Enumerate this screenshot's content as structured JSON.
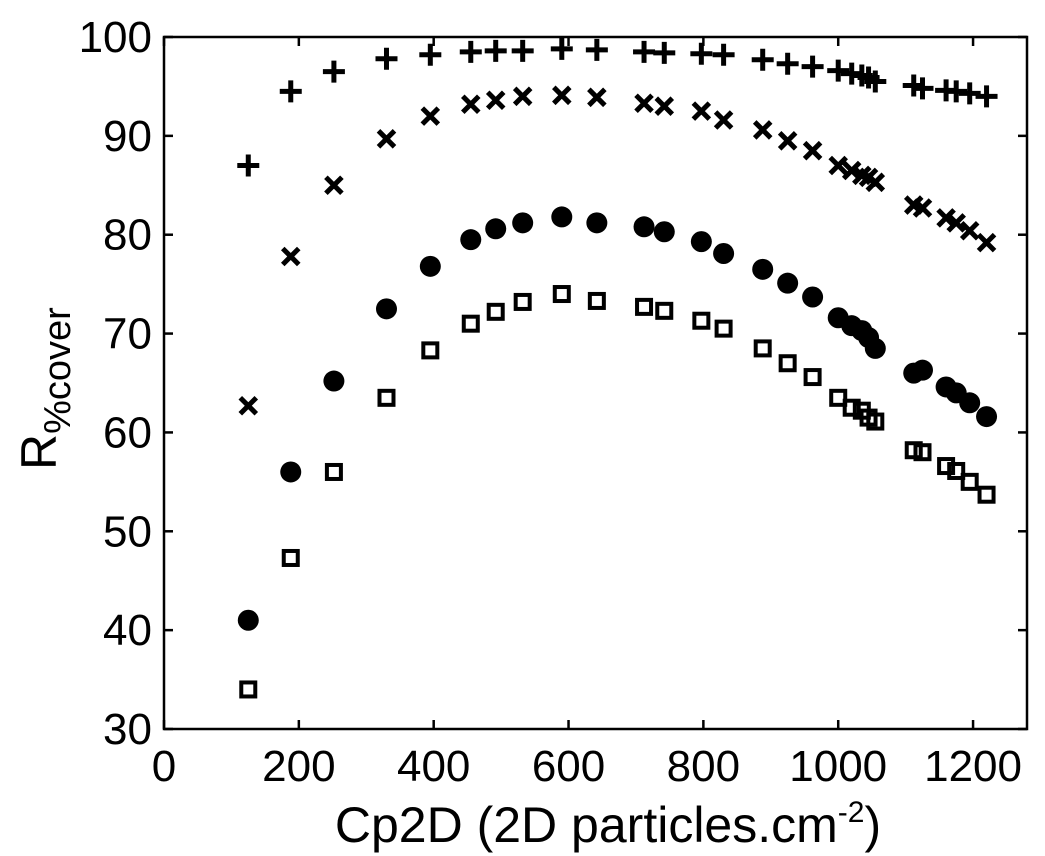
{
  "chart_data": {
    "type": "scatter",
    "title": "",
    "xlabel": {
      "text": "Cp2D (2D particles.cm",
      "superscript": "-2",
      "suffix": ")"
    },
    "ylabel": {
      "main": "R",
      "subscript": "%cover"
    },
    "xlim": [
      0,
      1280
    ],
    "ylim": [
      30,
      100
    ],
    "xticks": [
      0,
      200,
      400,
      600,
      800,
      1000,
      1200
    ],
    "yticks": [
      30,
      40,
      50,
      60,
      70,
      80,
      90,
      100
    ],
    "grid": false,
    "legend": "none",
    "marker_color": "#000000",
    "series": [
      {
        "marker": "plus",
        "points": [
          [
            125,
            87.0
          ],
          [
            188,
            94.5
          ],
          [
            252,
            96.5
          ],
          [
            330,
            97.8
          ],
          [
            395,
            98.2
          ],
          [
            455,
            98.5
          ],
          [
            492,
            98.6
          ],
          [
            532,
            98.6
          ],
          [
            590,
            98.8
          ],
          [
            642,
            98.7
          ],
          [
            712,
            98.5
          ],
          [
            742,
            98.4
          ],
          [
            797,
            98.3
          ],
          [
            830,
            98.2
          ],
          [
            888,
            97.7
          ],
          [
            925,
            97.3
          ],
          [
            962,
            97.0
          ],
          [
            1000,
            96.6
          ],
          [
            1020,
            96.3
          ],
          [
            1035,
            96.1
          ],
          [
            1045,
            95.9
          ],
          [
            1055,
            95.5
          ],
          [
            1112,
            95.1
          ],
          [
            1125,
            94.8
          ],
          [
            1160,
            94.6
          ],
          [
            1175,
            94.5
          ],
          [
            1195,
            94.3
          ],
          [
            1220,
            94.0
          ]
        ]
      },
      {
        "marker": "x",
        "points": [
          [
            125,
            62.7
          ],
          [
            188,
            77.8
          ],
          [
            252,
            85.0
          ],
          [
            330,
            89.7
          ],
          [
            395,
            92.0
          ],
          [
            455,
            93.2
          ],
          [
            492,
            93.6
          ],
          [
            532,
            94.0
          ],
          [
            590,
            94.1
          ],
          [
            642,
            93.9
          ],
          [
            712,
            93.3
          ],
          [
            742,
            93.0
          ],
          [
            797,
            92.5
          ],
          [
            830,
            91.6
          ],
          [
            888,
            90.6
          ],
          [
            925,
            89.5
          ],
          [
            962,
            88.5
          ],
          [
            1000,
            87.0
          ],
          [
            1020,
            86.5
          ],
          [
            1035,
            86.0
          ],
          [
            1045,
            85.8
          ],
          [
            1055,
            85.3
          ],
          [
            1112,
            83.0
          ],
          [
            1125,
            82.7
          ],
          [
            1160,
            81.7
          ],
          [
            1175,
            81.2
          ],
          [
            1195,
            80.4
          ],
          [
            1220,
            79.2
          ]
        ]
      },
      {
        "marker": "circle",
        "points": [
          [
            125,
            41.0
          ],
          [
            188,
            56.0
          ],
          [
            252,
            65.2
          ],
          [
            330,
            72.5
          ],
          [
            395,
            76.8
          ],
          [
            455,
            79.5
          ],
          [
            492,
            80.6
          ],
          [
            532,
            81.2
          ],
          [
            590,
            81.8
          ],
          [
            642,
            81.2
          ],
          [
            712,
            80.8
          ],
          [
            742,
            80.3
          ],
          [
            797,
            79.3
          ],
          [
            830,
            78.1
          ],
          [
            888,
            76.5
          ],
          [
            925,
            75.1
          ],
          [
            962,
            73.7
          ],
          [
            1000,
            71.6
          ],
          [
            1020,
            70.8
          ],
          [
            1035,
            70.3
          ],
          [
            1045,
            69.6
          ],
          [
            1055,
            68.5
          ],
          [
            1112,
            66.0
          ],
          [
            1125,
            66.3
          ],
          [
            1160,
            64.6
          ],
          [
            1175,
            64.0
          ],
          [
            1195,
            63.0
          ],
          [
            1220,
            61.6
          ]
        ]
      },
      {
        "marker": "square",
        "points": [
          [
            125,
            34.0
          ],
          [
            188,
            47.3
          ],
          [
            252,
            56.0
          ],
          [
            330,
            63.5
          ],
          [
            395,
            68.3
          ],
          [
            455,
            71.0
          ],
          [
            492,
            72.2
          ],
          [
            532,
            73.2
          ],
          [
            590,
            74.0
          ],
          [
            642,
            73.3
          ],
          [
            712,
            72.7
          ],
          [
            742,
            72.3
          ],
          [
            797,
            71.3
          ],
          [
            830,
            70.5
          ],
          [
            888,
            68.5
          ],
          [
            925,
            67.0
          ],
          [
            962,
            65.6
          ],
          [
            1000,
            63.5
          ],
          [
            1020,
            62.5
          ],
          [
            1035,
            62.2
          ],
          [
            1045,
            61.5
          ],
          [
            1055,
            61.1
          ],
          [
            1112,
            58.2
          ],
          [
            1125,
            58.0
          ],
          [
            1160,
            56.6
          ],
          [
            1175,
            56.1
          ],
          [
            1195,
            55.0
          ],
          [
            1220,
            53.7
          ]
        ]
      }
    ]
  }
}
